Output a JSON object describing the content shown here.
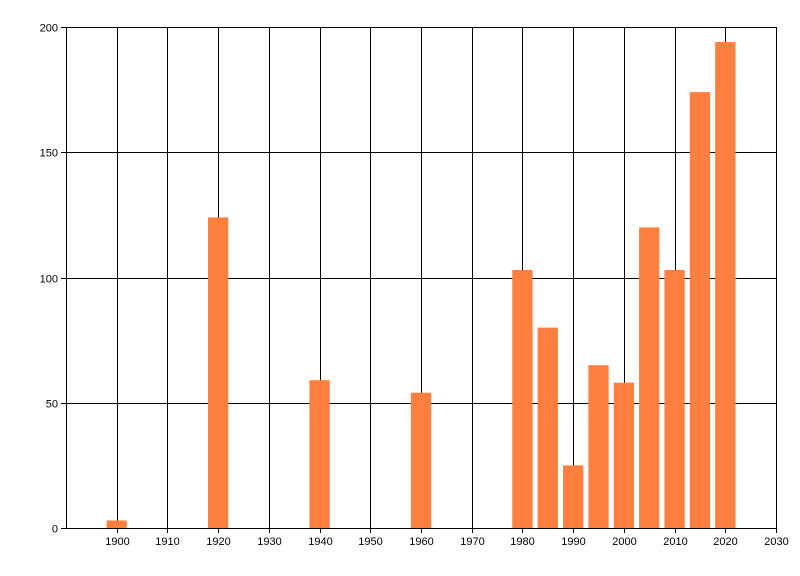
{
  "chart_data": {
    "type": "bar",
    "title": "",
    "xlabel": "",
    "ylabel": "",
    "xlim": [
      1890,
      2030
    ],
    "ylim": [
      0,
      200
    ],
    "x_ticks": [
      1900,
      1910,
      1920,
      1930,
      1940,
      1950,
      1960,
      1970,
      1980,
      1990,
      2000,
      2010,
      2020,
      2030
    ],
    "y_ticks": [
      0,
      50,
      100,
      150,
      200
    ],
    "grid": true,
    "legend": "none",
    "bar_width_years": 4,
    "colors": {
      "bar": "#FF7F3F",
      "grid": "#000000",
      "axis": "#000000",
      "background": "#FFFFFF"
    },
    "x": [
      1900,
      1920,
      1940,
      1960,
      1980,
      1985,
      1990,
      1995,
      2000,
      2005,
      2010,
      2015,
      2020
    ],
    "values": [
      3,
      124,
      59,
      54,
      103,
      80,
      25,
      65,
      58,
      120,
      103,
      174,
      194
    ]
  }
}
